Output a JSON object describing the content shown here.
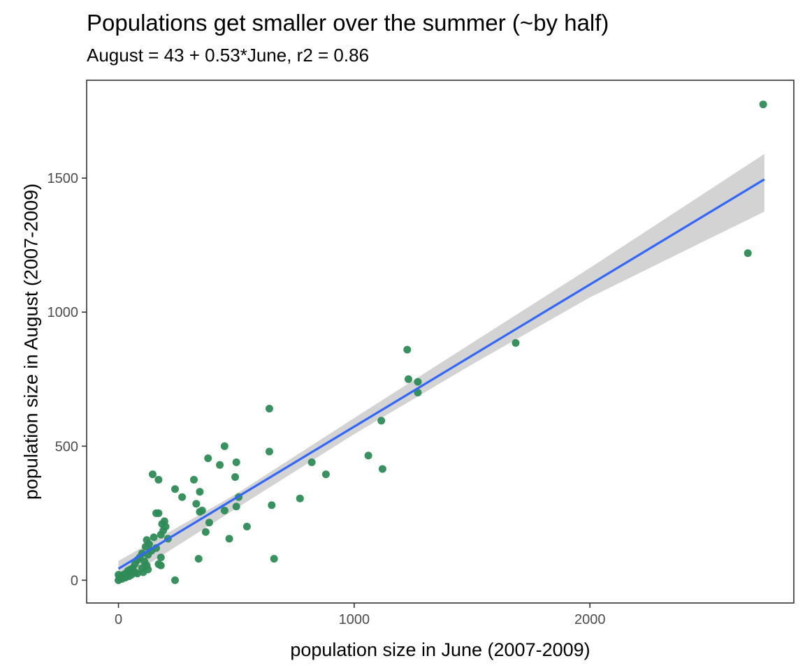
{
  "chart_data": {
    "type": "scatter",
    "title": "Populations get smaller over the summer (~by half)",
    "subtitle": "August = 43 + 0.53*June, r2 = 0.86",
    "xlabel": "population size in June (2007-2009)",
    "ylabel": "population size in August (2007-2009)",
    "xlim": [
      -135,
      2865
    ],
    "ylim": [
      -85,
      1865
    ],
    "x_ticks": [
      0,
      1000,
      2000
    ],
    "y_ticks": [
      0,
      500,
      1000,
      1500
    ],
    "grid": false,
    "legend": "none",
    "point_color": "#2e8b57",
    "line_color": "#3366ff",
    "band_color": "#d3d3d3",
    "fit": {
      "intercept": 43,
      "slope": 0.53,
      "x_range": [
        0,
        2740
      ]
    },
    "confidence_band": [
      {
        "x": 0,
        "lo": -10,
        "hi": 72
      },
      {
        "x": 500,
        "lo": 268,
        "hi": 322
      },
      {
        "x": 1000,
        "lo": 545,
        "hi": 605
      },
      {
        "x": 1500,
        "lo": 805,
        "hi": 885
      },
      {
        "x": 2000,
        "lo": 1055,
        "hi": 1165
      },
      {
        "x": 2740,
        "lo": 1375,
        "hi": 1590
      }
    ],
    "points": [
      {
        "x": 2735,
        "y": 1775
      },
      {
        "x": 2670,
        "y": 1220
      },
      {
        "x": 1685,
        "y": 885
      },
      {
        "x": 1225,
        "y": 860
      },
      {
        "x": 1230,
        "y": 750
      },
      {
        "x": 1270,
        "y": 740
      },
      {
        "x": 1270,
        "y": 700
      },
      {
        "x": 1115,
        "y": 595
      },
      {
        "x": 1120,
        "y": 415
      },
      {
        "x": 1060,
        "y": 465
      },
      {
        "x": 880,
        "y": 395
      },
      {
        "x": 820,
        "y": 440
      },
      {
        "x": 770,
        "y": 305
      },
      {
        "x": 640,
        "y": 640
      },
      {
        "x": 640,
        "y": 480
      },
      {
        "x": 650,
        "y": 280
      },
      {
        "x": 660,
        "y": 80
      },
      {
        "x": 545,
        "y": 200
      },
      {
        "x": 450,
        "y": 500
      },
      {
        "x": 430,
        "y": 430
      },
      {
        "x": 380,
        "y": 455
      },
      {
        "x": 500,
        "y": 440
      },
      {
        "x": 495,
        "y": 385
      },
      {
        "x": 510,
        "y": 310
      },
      {
        "x": 500,
        "y": 275
      },
      {
        "x": 450,
        "y": 260
      },
      {
        "x": 470,
        "y": 155
      },
      {
        "x": 385,
        "y": 215
      },
      {
        "x": 370,
        "y": 180
      },
      {
        "x": 320,
        "y": 375
      },
      {
        "x": 345,
        "y": 330
      },
      {
        "x": 330,
        "y": 285
      },
      {
        "x": 345,
        "y": 255
      },
      {
        "x": 355,
        "y": 260
      },
      {
        "x": 270,
        "y": 310
      },
      {
        "x": 340,
        "y": 80
      },
      {
        "x": 240,
        "y": 340
      },
      {
        "x": 240,
        "y": 0
      },
      {
        "x": 145,
        "y": 395
      },
      {
        "x": 170,
        "y": 375
      },
      {
        "x": 160,
        "y": 250
      },
      {
        "x": 170,
        "y": 250
      },
      {
        "x": 195,
        "y": 220
      },
      {
        "x": 185,
        "y": 210
      },
      {
        "x": 200,
        "y": 200
      },
      {
        "x": 190,
        "y": 185
      },
      {
        "x": 180,
        "y": 170
      },
      {
        "x": 210,
        "y": 155
      },
      {
        "x": 120,
        "y": 150
      },
      {
        "x": 150,
        "y": 160
      },
      {
        "x": 130,
        "y": 135
      },
      {
        "x": 115,
        "y": 125
      },
      {
        "x": 160,
        "y": 120
      },
      {
        "x": 140,
        "y": 110
      },
      {
        "x": 100,
        "y": 100
      },
      {
        "x": 125,
        "y": 95
      },
      {
        "x": 180,
        "y": 85
      },
      {
        "x": 170,
        "y": 60
      },
      {
        "x": 180,
        "y": 55
      },
      {
        "x": 90,
        "y": 85
      },
      {
        "x": 80,
        "y": 75
      },
      {
        "x": 110,
        "y": 70
      },
      {
        "x": 70,
        "y": 60
      },
      {
        "x": 120,
        "y": 55
      },
      {
        "x": 100,
        "y": 45
      },
      {
        "x": 125,
        "y": 40
      },
      {
        "x": 105,
        "y": 30
      },
      {
        "x": 60,
        "y": 45
      },
      {
        "x": 50,
        "y": 40
      },
      {
        "x": 40,
        "y": 35
      },
      {
        "x": 70,
        "y": 30
      },
      {
        "x": 80,
        "y": 25
      },
      {
        "x": 30,
        "y": 25
      },
      {
        "x": 20,
        "y": 20
      },
      {
        "x": 55,
        "y": 20
      },
      {
        "x": 10,
        "y": 15
      },
      {
        "x": 0,
        "y": 20
      },
      {
        "x": 5,
        "y": 10
      },
      {
        "x": 15,
        "y": 5
      },
      {
        "x": 0,
        "y": 0
      },
      {
        "x": 30,
        "y": 10
      },
      {
        "x": 45,
        "y": 15
      }
    ]
  }
}
